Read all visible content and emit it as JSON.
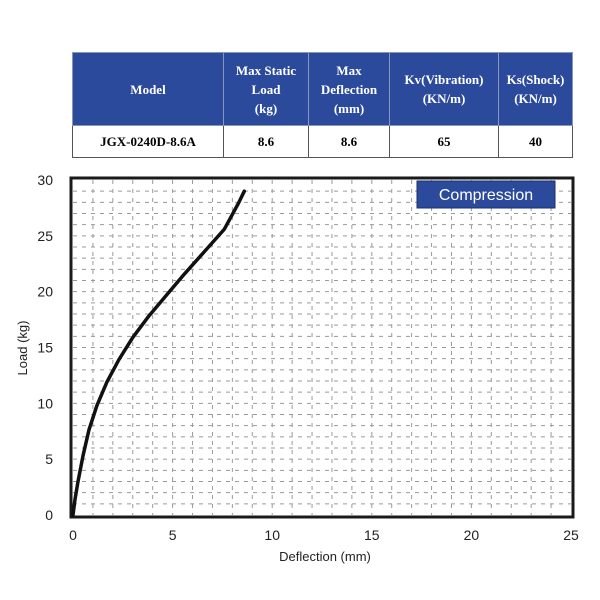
{
  "spec_table": {
    "headers": [
      [
        "Model"
      ],
      [
        "Max Static",
        "Load",
        "(kg)"
      ],
      [
        "Max",
        "Deflection",
        "(mm)"
      ],
      [
        "Kv(Vibration)",
        "(KN/m)"
      ],
      [
        "Ks(Shock)",
        "(KN/m)"
      ]
    ],
    "row": [
      "JGX-0240D-8.6A",
      "8.6",
      "8.6",
      "65",
      "40"
    ]
  },
  "chart_data": {
    "type": "line",
    "title": "",
    "legend_label": "Compression",
    "xlabel": "Deflection (mm)",
    "ylabel": "Load (kg)",
    "xlim": [
      0,
      25
    ],
    "ylim": [
      0,
      30
    ],
    "x_ticks": [
      0,
      5,
      10,
      15,
      20,
      25
    ],
    "y_ticks": [
      0,
      5,
      10,
      15,
      20,
      25,
      30
    ],
    "grid": true,
    "legend_position": "top-right",
    "series": [
      {
        "color": "#111111",
        "points": [
          [
            0,
            0
          ],
          [
            0.1,
            1.4
          ],
          [
            0.25,
            3.0
          ],
          [
            0.5,
            5.3
          ],
          [
            0.8,
            7.6
          ],
          [
            1.2,
            9.8
          ],
          [
            1.7,
            11.9
          ],
          [
            2.3,
            13.9
          ],
          [
            3.0,
            15.9
          ],
          [
            3.8,
            17.8
          ],
          [
            4.7,
            19.7
          ],
          [
            5.6,
            21.6
          ],
          [
            6.6,
            23.6
          ],
          [
            7.6,
            25.6
          ],
          [
            8.3,
            27.9
          ],
          [
            8.6,
            29.0
          ]
        ]
      }
    ]
  }
}
